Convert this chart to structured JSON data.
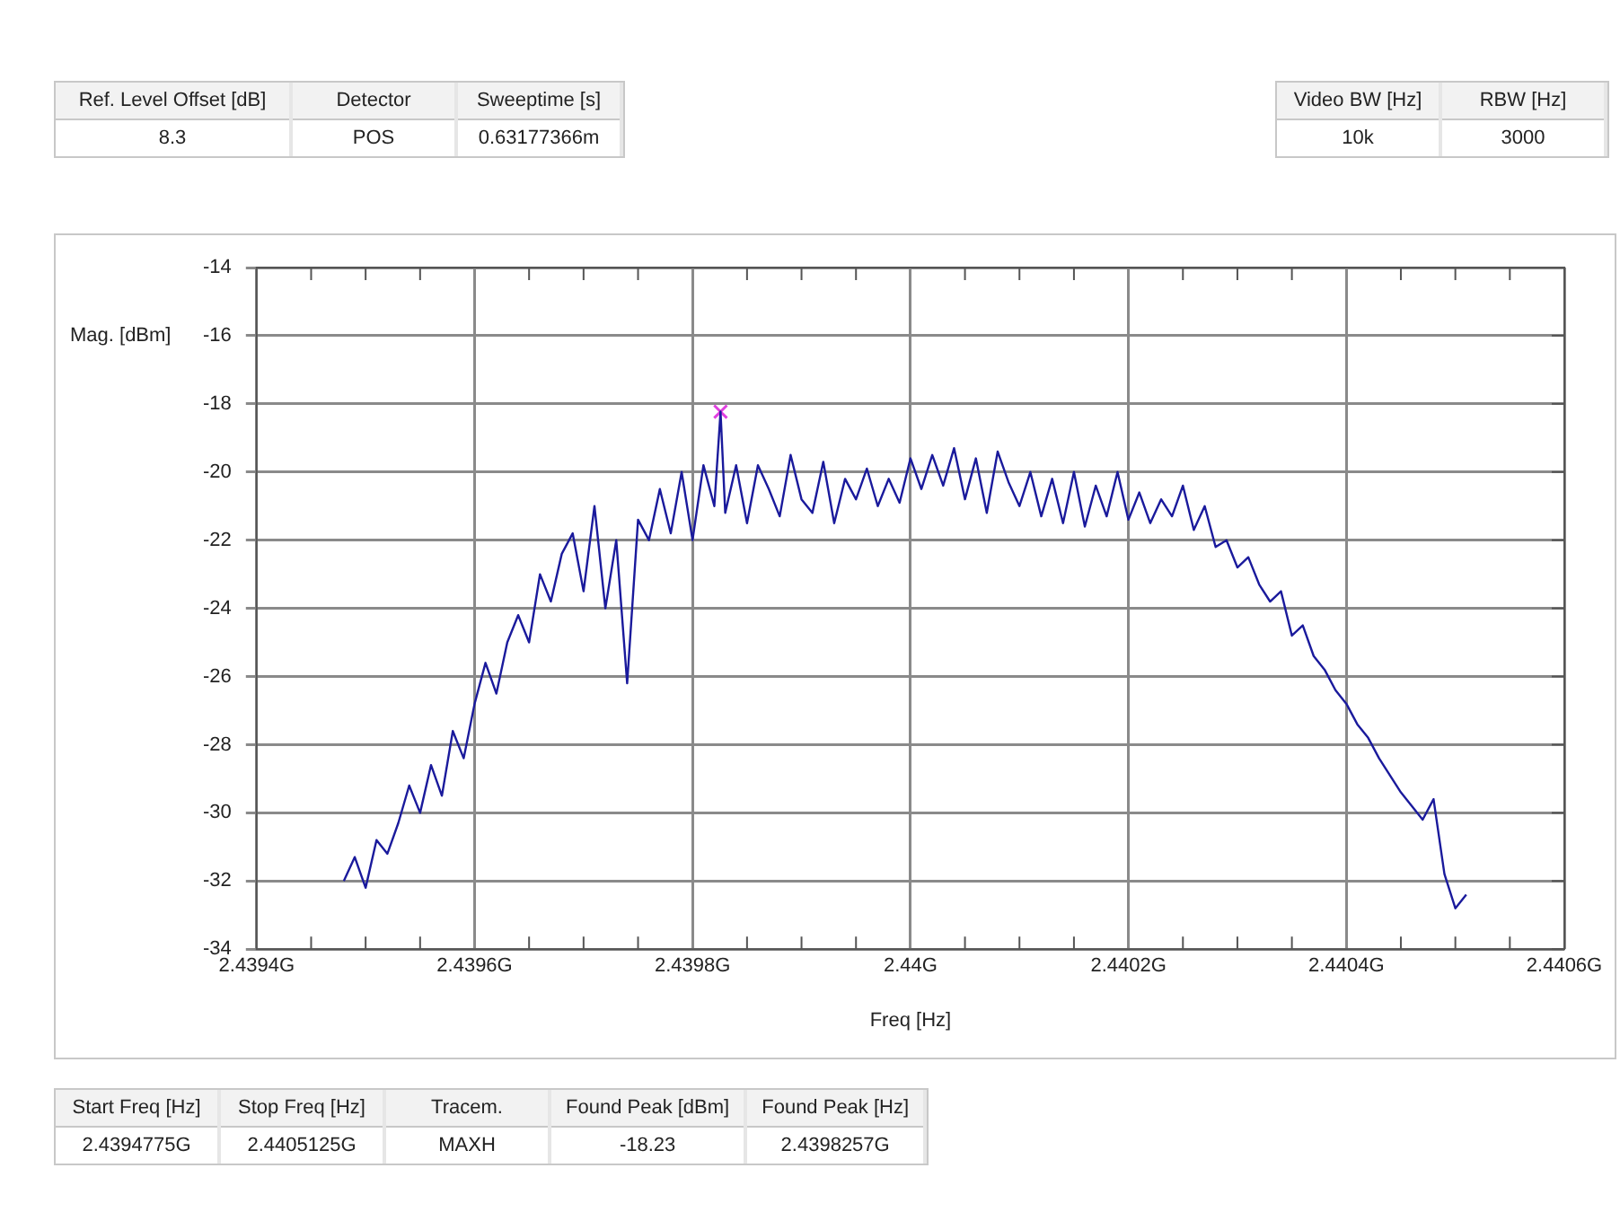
{
  "chart_data": {
    "type": "line",
    "xlabel": "Freq [Hz]",
    "ylabel": "Mag. [dBm]",
    "xlim": [
      2.4394,
      2.4406
    ],
    "xticks": [
      {
        "value": 2.4394,
        "label": "2.4394G"
      },
      {
        "value": 2.43945,
        "label": null
      },
      {
        "value": 2.4395,
        "label": null
      },
      {
        "value": 2.43955,
        "label": null
      },
      {
        "value": 2.4396,
        "label": "2.4396G"
      },
      {
        "value": 2.43965,
        "label": null
      },
      {
        "value": 2.4397,
        "label": null
      },
      {
        "value": 2.43975,
        "label": null
      },
      {
        "value": 2.4398,
        "label": "2.4398G"
      },
      {
        "value": 2.43985,
        "label": null
      },
      {
        "value": 2.4399,
        "label": null
      },
      {
        "value": 2.43995,
        "label": null
      },
      {
        "value": 2.44,
        "label": "2.44G"
      },
      {
        "value": 2.44005,
        "label": null
      },
      {
        "value": 2.4401,
        "label": null
      },
      {
        "value": 2.44015,
        "label": null
      },
      {
        "value": 2.4402,
        "label": "2.4402G"
      },
      {
        "value": 2.44025,
        "label": null
      },
      {
        "value": 2.4403,
        "label": null
      },
      {
        "value": 2.44035,
        "label": null
      },
      {
        "value": 2.4404,
        "label": "2.4404G"
      },
      {
        "value": 2.44045,
        "label": null
      },
      {
        "value": 2.4405,
        "label": null
      },
      {
        "value": 2.44055,
        "label": null
      },
      {
        "value": 2.4406,
        "label": "2.4406G"
      }
    ],
    "ylim": [
      -34,
      -14
    ],
    "yticks": [
      -34,
      -32,
      -30,
      -28,
      -26,
      -24,
      -22,
      -20,
      -18,
      -16,
      -14
    ],
    "grid": true,
    "legend": false,
    "series": [
      {
        "color": "#1a1a9c",
        "marker": "none",
        "x": [
          2.43948,
          2.43949,
          2.4395,
          2.43951,
          2.43952,
          2.43953,
          2.43954,
          2.43955,
          2.43956,
          2.43957,
          2.43958,
          2.43959,
          2.4396,
          2.43961,
          2.43962,
          2.43963,
          2.43964,
          2.43965,
          2.43966,
          2.43967,
          2.43968,
          2.43969,
          2.4397,
          2.43971,
          2.43972,
          2.43973,
          2.43974,
          2.43975,
          2.43976,
          2.43977,
          2.43978,
          2.43979,
          2.4398,
          2.43981,
          2.43982,
          2.4398257,
          2.43983,
          2.43984,
          2.43985,
          2.43986,
          2.43987,
          2.43988,
          2.43989,
          2.4399,
          2.43991,
          2.43992,
          2.43993,
          2.43994,
          2.43995,
          2.43996,
          2.43997,
          2.43998,
          2.43999,
          2.44,
          2.44001,
          2.44002,
          2.44003,
          2.44004,
          2.44005,
          2.44006,
          2.44007,
          2.44008,
          2.44009,
          2.4401,
          2.44011,
          2.44012,
          2.44013,
          2.44014,
          2.44015,
          2.44016,
          2.44017,
          2.44018,
          2.44019,
          2.4402,
          2.44021,
          2.44022,
          2.44023,
          2.44024,
          2.44025,
          2.44026,
          2.44027,
          2.44028,
          2.44029,
          2.4403,
          2.44031,
          2.44032,
          2.44033,
          2.44034,
          2.44035,
          2.44036,
          2.44037,
          2.44038,
          2.44039,
          2.4404,
          2.44041,
          2.44042,
          2.44043,
          2.44044,
          2.44045,
          2.44046,
          2.44047,
          2.44048,
          2.44049,
          2.4405,
          2.44051
        ],
        "values": [
          -32.0,
          -31.3,
          -32.2,
          -30.8,
          -31.2,
          -30.3,
          -29.2,
          -30.0,
          -28.6,
          -29.5,
          -27.6,
          -28.4,
          -26.8,
          -25.6,
          -26.5,
          -25.0,
          -24.2,
          -25.0,
          -23.0,
          -23.8,
          -22.4,
          -21.8,
          -23.5,
          -21.0,
          -24.0,
          -22.0,
          -26.2,
          -21.4,
          -22.0,
          -20.5,
          -21.8,
          -20.0,
          -22.0,
          -19.8,
          -21.0,
          -18.23,
          -21.2,
          -19.8,
          -21.5,
          -19.8,
          -20.5,
          -21.3,
          -19.5,
          -20.8,
          -21.2,
          -19.7,
          -21.5,
          -20.2,
          -20.8,
          -19.9,
          -21.0,
          -20.2,
          -20.9,
          -19.6,
          -20.5,
          -19.5,
          -20.4,
          -19.3,
          -20.8,
          -19.6,
          -21.2,
          -19.4,
          -20.3,
          -21.0,
          -20.0,
          -21.3,
          -20.2,
          -21.5,
          -20.0,
          -21.6,
          -20.4,
          -21.3,
          -20.0,
          -21.4,
          -20.6,
          -21.5,
          -20.8,
          -21.3,
          -20.4,
          -21.7,
          -21.0,
          -22.2,
          -22.0,
          -22.8,
          -22.5,
          -23.3,
          -23.8,
          -23.5,
          -24.8,
          -24.5,
          -25.4,
          -25.8,
          -26.4,
          -26.8,
          -27.4,
          -27.8,
          -28.4,
          -28.9,
          -29.4,
          -29.8,
          -30.2,
          -29.6,
          -31.8,
          -32.8,
          -32.4
        ]
      },
      {
        "type": "scatter",
        "color": "#e040e0",
        "marker": "cross",
        "x": [
          2.4398257
        ],
        "values": [
          -18.23
        ]
      }
    ],
    "annotations": [
      "Ref. Level Offset [dB]",
      "8.3",
      "Detector",
      "POS",
      "Sweeptime [s]",
      "0.63177366m",
      "Video BW [Hz]",
      "10k",
      "RBW [Hz]",
      "3000",
      "Start Freq [Hz]",
      "2.4394775G",
      "Stop Freq [Hz]",
      "2.4405125G",
      "Tracem.",
      "MAXH",
      "Found Peak [dBm]",
      "-18.23",
      "Found Peak [Hz]",
      "2.4398257G"
    ]
  }
}
